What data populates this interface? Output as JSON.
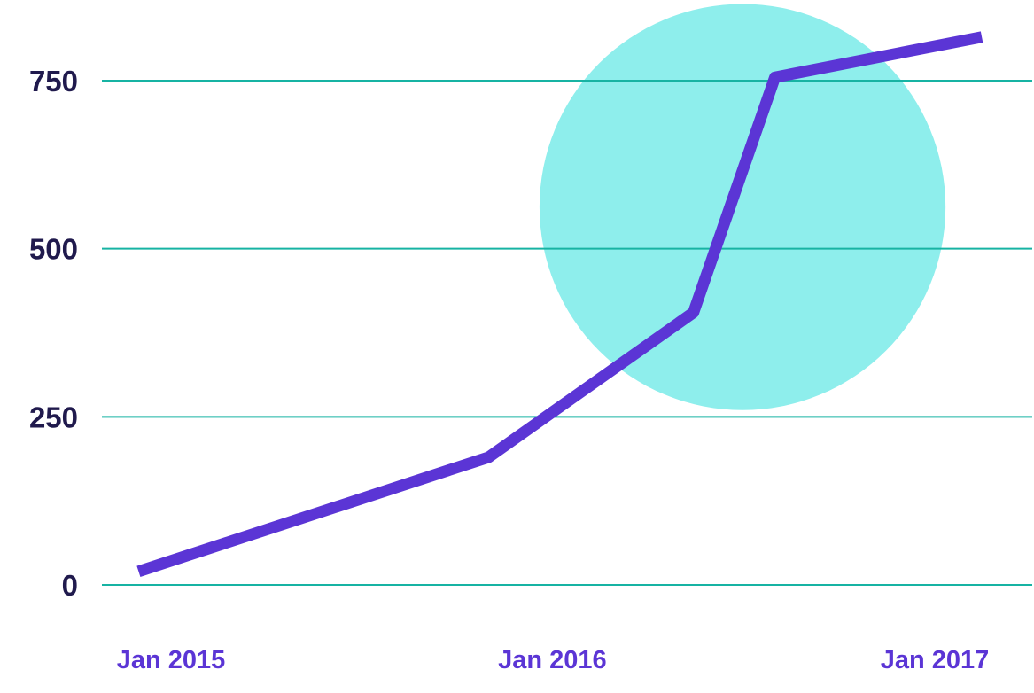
{
  "chart_data": {
    "type": "line",
    "title": "",
    "xlabel": "",
    "ylabel": "",
    "ylim": [
      0,
      750
    ],
    "grid": true,
    "y_ticks": [
      "0",
      "250",
      "500",
      "750"
    ],
    "x_ticks": [
      {
        "label": "Jan 2015",
        "date": "2015-01-01"
      },
      {
        "label": "Jan 2016",
        "date": "2016-01-01"
      },
      {
        "label": "Jan 2017",
        "date": "2017-01-01"
      }
    ],
    "series": [
      {
        "x": [
          "2014-12-01",
          "2015-11-01",
          "2016-05-15",
          "2016-08-01",
          "2017-02-15"
        ],
        "y": [
          20,
          190,
          405,
          755,
          815
        ]
      }
    ],
    "highlight": {
      "shape": "circle",
      "center_date": "2016-07-01",
      "center_value": 562,
      "radius_value": 302
    },
    "colors": {
      "line": "#5b35d5",
      "grid": "#17b3a3",
      "highlight": "#8eeeec",
      "y_tick_text": "#201a4d",
      "x_tick_text": "#5b35d5"
    }
  }
}
